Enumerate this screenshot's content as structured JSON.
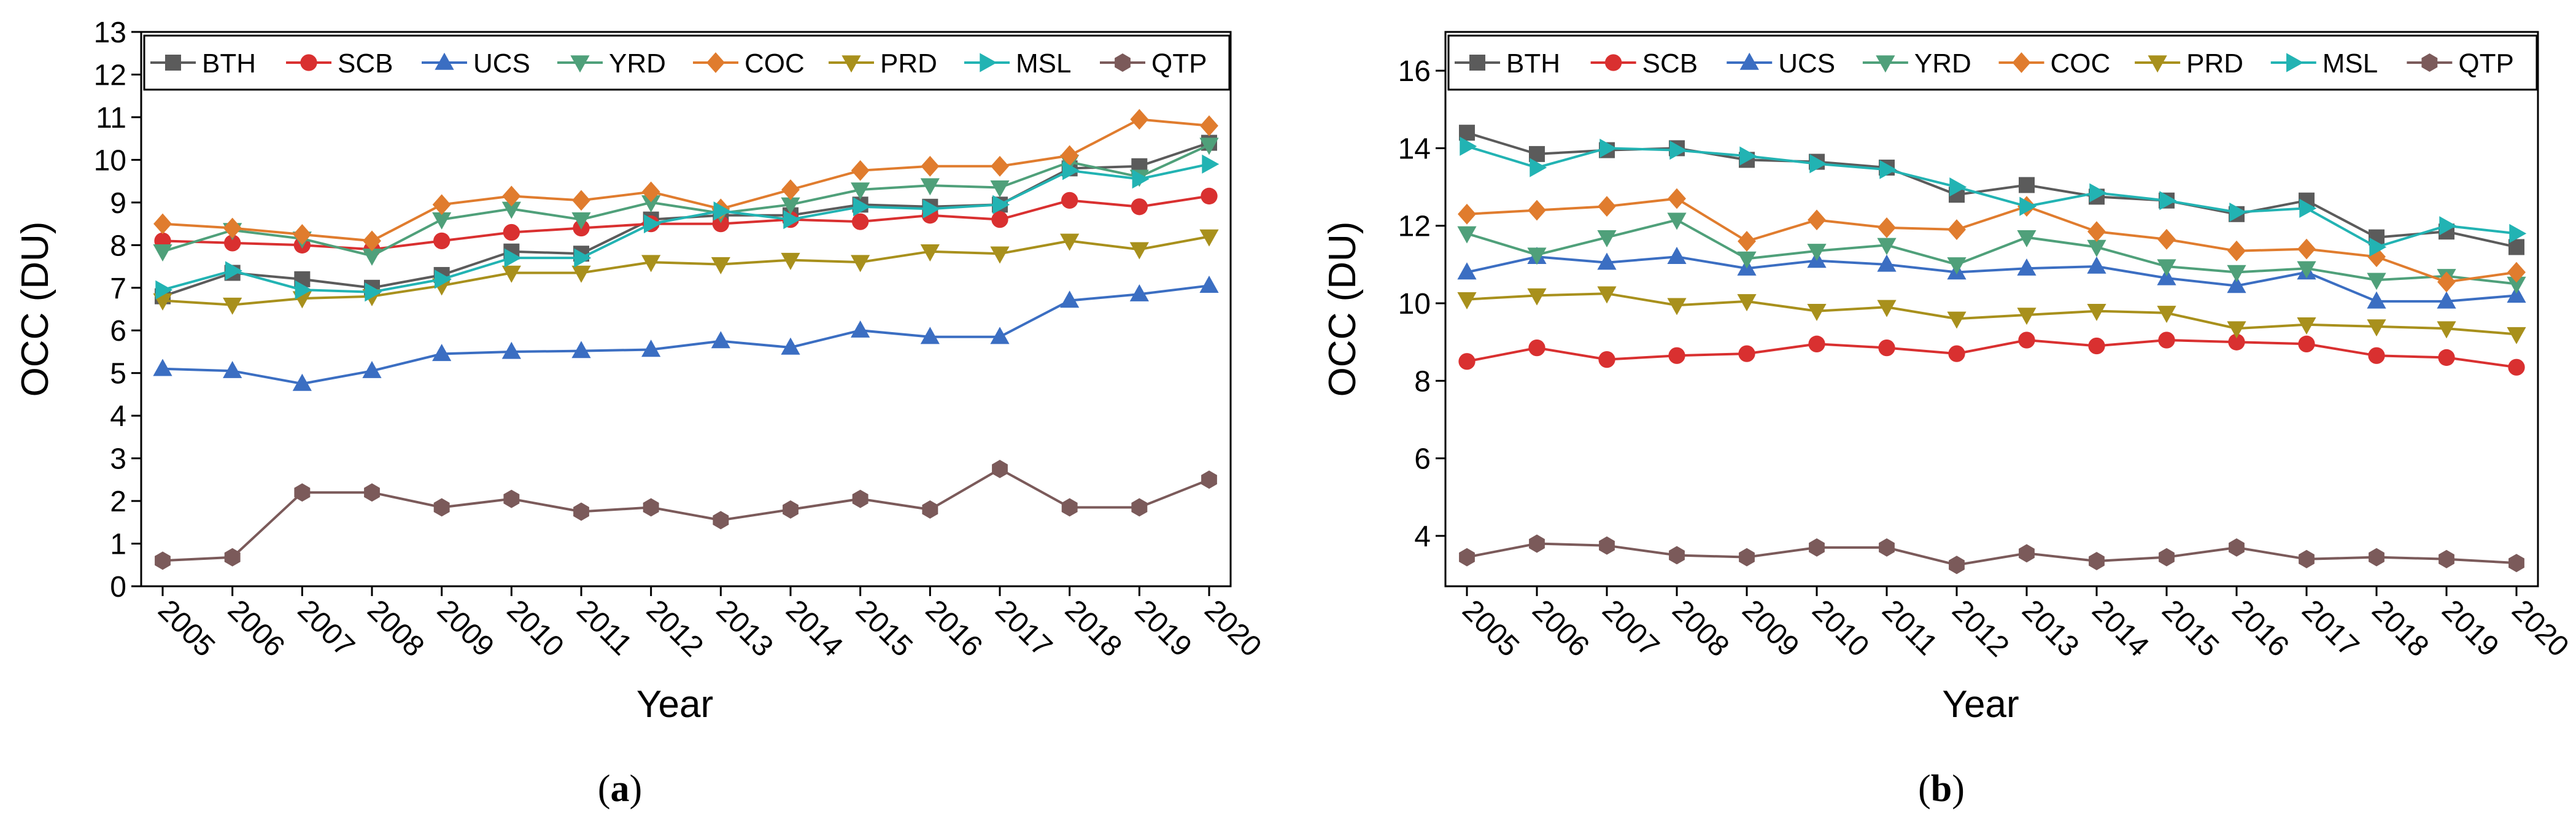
{
  "chart_data": [
    {
      "type": "line",
      "panel": "a",
      "caption_open": "(",
      "caption_letter": "a",
      "caption_close": ")",
      "xlabel": "Year",
      "ylabel": "OCC (DU)",
      "ylim": [
        0,
        13
      ],
      "yticks": [
        "0",
        "1",
        "2",
        "3",
        "4",
        "5",
        "6",
        "7",
        "8",
        "9",
        "10",
        "11",
        "12",
        "13"
      ],
      "x": [
        "2005",
        "2006",
        "2007",
        "2008",
        "2009",
        "2010",
        "2011",
        "2012",
        "2013",
        "2014",
        "2015",
        "2016",
        "2017",
        "2018",
        "2019",
        "2020"
      ],
      "legend_position": "top",
      "series": [
        {
          "name": "BTH",
          "color": "#5b5b5b",
          "marker": "square",
          "values": [
            6.8,
            7.35,
            7.2,
            7.0,
            7.3,
            7.85,
            7.8,
            8.6,
            8.7,
            8.7,
            8.95,
            8.9,
            8.95,
            9.8,
            9.85,
            10.4
          ]
        },
        {
          "name": "SCB",
          "color": "#d93030",
          "marker": "circle",
          "values": [
            8.1,
            8.05,
            8.0,
            7.9,
            8.1,
            8.3,
            8.4,
            8.5,
            8.5,
            8.6,
            8.55,
            8.7,
            8.6,
            9.05,
            8.9,
            9.15
          ]
        },
        {
          "name": "UCS",
          "color": "#3b6ec2",
          "marker": "triangle-up",
          "values": [
            5.1,
            5.05,
            4.75,
            5.05,
            5.45,
            5.5,
            5.52,
            5.55,
            5.75,
            5.6,
            6.0,
            5.85,
            5.85,
            6.7,
            6.85,
            7.05
          ]
        },
        {
          "name": "YRD",
          "color": "#4fa07a",
          "marker": "triangle-down",
          "values": [
            7.85,
            8.35,
            8.15,
            7.75,
            8.6,
            8.85,
            8.6,
            9.0,
            8.75,
            8.95,
            9.3,
            9.4,
            9.35,
            9.95,
            9.6,
            10.35
          ]
        },
        {
          "name": "COC",
          "color": "#e07c2e",
          "marker": "diamond",
          "values": [
            8.5,
            8.4,
            8.25,
            8.1,
            8.95,
            9.15,
            9.05,
            9.25,
            8.85,
            9.3,
            9.75,
            9.85,
            9.85,
            10.1,
            10.95,
            10.8
          ]
        },
        {
          "name": "PRD",
          "color": "#a8901c",
          "marker": "triangle-down",
          "values": [
            6.7,
            6.6,
            6.75,
            6.8,
            7.05,
            7.35,
            7.35,
            7.6,
            7.55,
            7.65,
            7.6,
            7.85,
            7.8,
            8.1,
            7.9,
            8.2
          ]
        },
        {
          "name": "MSL",
          "color": "#22b3b3",
          "marker": "triangle-right",
          "values": [
            6.95,
            7.4,
            6.95,
            6.9,
            7.2,
            7.7,
            7.7,
            8.5,
            8.8,
            8.6,
            8.9,
            8.85,
            8.95,
            9.75,
            9.55,
            9.9
          ]
        },
        {
          "name": "QTP",
          "color": "#7b5a5a",
          "marker": "hexagon",
          "values": [
            0.6,
            0.68,
            2.2,
            2.2,
            1.85,
            2.05,
            1.75,
            1.85,
            1.55,
            1.8,
            2.05,
            1.8,
            2.75,
            1.85,
            1.85,
            2.5
          ]
        }
      ]
    },
    {
      "type": "line",
      "panel": "b",
      "caption_open": "(",
      "caption_letter": "b",
      "caption_close": ")",
      "xlabel": "Year",
      "ylabel": "OCC (DU)",
      "ylim": [
        2.7,
        17
      ],
      "yticks": [
        "4",
        "6",
        "8",
        "10",
        "12",
        "14",
        "16"
      ],
      "ytick_values": [
        4,
        6,
        8,
        10,
        12,
        14,
        16
      ],
      "x": [
        "2005",
        "2006",
        "2007",
        "2008",
        "2009",
        "2010",
        "2011",
        "2012",
        "2013",
        "2014",
        "2015",
        "2016",
        "2017",
        "2018",
        "2019",
        "2020"
      ],
      "legend_position": "top",
      "series": [
        {
          "name": "BTH",
          "color": "#5b5b5b",
          "marker": "square",
          "values": [
            14.4,
            13.85,
            13.95,
            14.0,
            13.7,
            13.65,
            13.5,
            12.8,
            13.05,
            12.75,
            12.65,
            12.3,
            12.65,
            11.7,
            11.85,
            11.45
          ]
        },
        {
          "name": "SCB",
          "color": "#d93030",
          "marker": "circle",
          "values": [
            8.5,
            8.85,
            8.55,
            8.65,
            8.7,
            8.95,
            8.85,
            8.7,
            9.05,
            8.9,
            9.05,
            9.0,
            8.95,
            8.65,
            8.6,
            8.35
          ]
        },
        {
          "name": "UCS",
          "color": "#3b6ec2",
          "marker": "triangle-up",
          "values": [
            10.8,
            11.2,
            11.05,
            11.2,
            10.9,
            11.1,
            11.0,
            10.8,
            10.9,
            10.95,
            10.65,
            10.45,
            10.8,
            10.05,
            10.05,
            10.2
          ]
        },
        {
          "name": "YRD",
          "color": "#4fa07a",
          "marker": "triangle-down",
          "values": [
            11.8,
            11.25,
            11.7,
            12.15,
            11.15,
            11.35,
            11.5,
            11.0,
            11.7,
            11.45,
            10.95,
            10.8,
            10.9,
            10.6,
            10.7,
            10.5
          ]
        },
        {
          "name": "COC",
          "color": "#e07c2e",
          "marker": "diamond",
          "values": [
            12.3,
            12.4,
            12.5,
            12.7,
            11.6,
            12.15,
            11.95,
            11.9,
            12.5,
            11.85,
            11.65,
            11.35,
            11.4,
            11.2,
            10.55,
            10.8
          ]
        },
        {
          "name": "PRD",
          "color": "#a8901c",
          "marker": "triangle-down",
          "values": [
            10.1,
            10.2,
            10.25,
            9.95,
            10.05,
            9.8,
            9.9,
            9.6,
            9.7,
            9.8,
            9.75,
            9.35,
            9.45,
            9.4,
            9.35,
            9.2
          ]
        },
        {
          "name": "MSL",
          "color": "#22b3b3",
          "marker": "triangle-right",
          "values": [
            14.05,
            13.5,
            14.0,
            13.95,
            13.8,
            13.6,
            13.45,
            13.0,
            12.5,
            12.85,
            12.65,
            12.35,
            12.45,
            11.45,
            12.0,
            11.8
          ]
        },
        {
          "name": "QTP",
          "color": "#7b5a5a",
          "marker": "hexagon",
          "values": [
            3.45,
            3.8,
            3.75,
            3.5,
            3.45,
            3.7,
            3.7,
            3.25,
            3.55,
            3.35,
            3.45,
            3.7,
            3.4,
            3.45,
            3.4,
            3.3
          ]
        }
      ]
    }
  ]
}
